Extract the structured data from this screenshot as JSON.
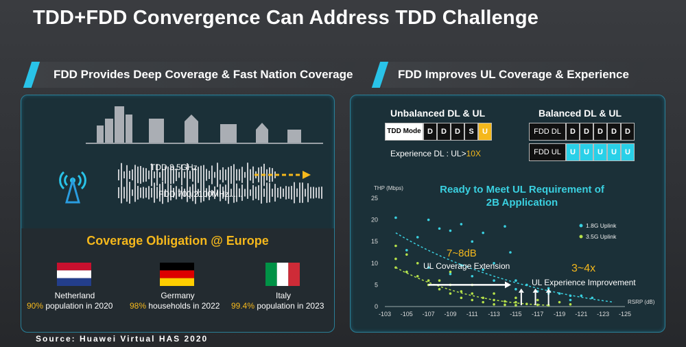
{
  "title": "TDD+FDD Convergence Can Address TDD Challenge",
  "left_band": "FDD Provides Deep Coverage & Fast Nation Coverage",
  "right_band": "FDD Improves UL Coverage & Experience",
  "left": {
    "tdd_label": "TDD 3.5GHz",
    "fdd_label": "FDD 700/2100MHz......",
    "coverage_title": "Coverage Obligation @ Europe",
    "countries": [
      {
        "name": "Netherland",
        "pct": "90%",
        "rest": " population in 2020"
      },
      {
        "name": "Germany",
        "pct": "98%",
        "rest": " households in 2022"
      },
      {
        "name": "Italy",
        "pct": "99.4%",
        "rest": " population in 2023"
      }
    ]
  },
  "right": {
    "unbalanced_title": "Unbalanced DL & UL",
    "balanced_title": "Balanced DL & UL",
    "tdd_mode_label": "TDD Mode",
    "tdd_slots": [
      "D",
      "D",
      "D",
      "S",
      "U"
    ],
    "fdd_dl_label": "FDD DL",
    "fdd_dl_slots": [
      "D",
      "D",
      "D",
      "D",
      "D"
    ],
    "fdd_ul_label": "FDD UL",
    "fdd_ul_slots": [
      "U",
      "U",
      "U",
      "U",
      "U"
    ],
    "experience_label": "Experience DL : UL>",
    "experience_value": "10X",
    "ready_line1": "Ready to Meet UL Requirement of",
    "ready_line2": "2B Application",
    "db_value": "7~8dB",
    "db_label": "UL Coverage Extension",
    "x_value": "3~4x",
    "x_label": "UL Experience Improvement"
  },
  "colors": {
    "accent_cyan": "#29c3e8",
    "gold": "#f5b81c",
    "legend_cyan": "#3ad0e0",
    "legend_green": "#b6e24a"
  },
  "chart_data": {
    "type": "scatter",
    "ylabel": "THP (Mbps)",
    "xlabel": "RSRP (dB)",
    "x_ticks": [
      -103,
      -105,
      -107,
      -109,
      -111,
      -113,
      -115,
      -117,
      -119,
      -121,
      -123,
      -125
    ],
    "y_ticks": [
      0,
      5,
      10,
      15,
      20,
      25
    ],
    "xlim": [
      -103,
      -125
    ],
    "ylim": [
      0,
      25
    ],
    "series": [
      {
        "name": "1.8G Uplink",
        "color": "#3ad0e0",
        "points": [
          [
            -104,
            20.5
          ],
          [
            -105,
            13
          ],
          [
            -106,
            16
          ],
          [
            -107,
            20
          ],
          [
            -108,
            18
          ],
          [
            -109,
            17.5
          ],
          [
            -110,
            19
          ],
          [
            -111,
            15
          ],
          [
            -112,
            17
          ],
          [
            -113,
            10
          ],
          [
            -114,
            18.5
          ],
          [
            -114.5,
            12.5
          ],
          [
            -105,
            8
          ],
          [
            -107,
            9
          ],
          [
            -109,
            7.5
          ],
          [
            -111,
            7
          ],
          [
            -113,
            6
          ],
          [
            -115,
            4
          ],
          [
            -116,
            5
          ],
          [
            -117,
            3.5
          ],
          [
            -118,
            3
          ],
          [
            -119,
            3
          ],
          [
            -120,
            2.5
          ],
          [
            -121,
            2.5
          ],
          [
            -122,
            2
          ],
          [
            -110,
            9.5
          ],
          [
            -112,
            8.5
          ],
          [
            -115,
            6
          ],
          [
            -118,
            4.2
          ],
          [
            -120,
            1.5
          ]
        ]
      },
      {
        "name": "3.5G Uplink",
        "color": "#b6e24a",
        "points": [
          [
            -104,
            14
          ],
          [
            -104,
            9
          ],
          [
            -105,
            8
          ],
          [
            -106,
            7
          ],
          [
            -107,
            6
          ],
          [
            -107,
            5
          ],
          [
            -108,
            6
          ],
          [
            -108,
            4
          ],
          [
            -109,
            5
          ],
          [
            -109,
            3
          ],
          [
            -110,
            3.5
          ],
          [
            -110,
            2
          ],
          [
            -111,
            3
          ],
          [
            -111,
            1.5
          ],
          [
            -112,
            2
          ],
          [
            -112,
            1
          ],
          [
            -113,
            1.5
          ],
          [
            -113,
            0.5
          ],
          [
            -114,
            1.2
          ],
          [
            -114,
            0.4
          ],
          [
            -115,
            1
          ],
          [
            -115,
            0.3
          ],
          [
            -116,
            0.6
          ],
          [
            -117,
            0.4
          ],
          [
            -118,
            0.3
          ],
          [
            -106,
            10
          ],
          [
            -104,
            11
          ],
          [
            -105,
            12
          ],
          [
            -109,
            8
          ],
          [
            -111,
            5
          ],
          [
            -113,
            3
          ],
          [
            -115,
            2
          ],
          [
            -117,
            1.5
          ],
          [
            -119,
            1
          ],
          [
            -120,
            0.5
          ]
        ]
      }
    ]
  }
}
